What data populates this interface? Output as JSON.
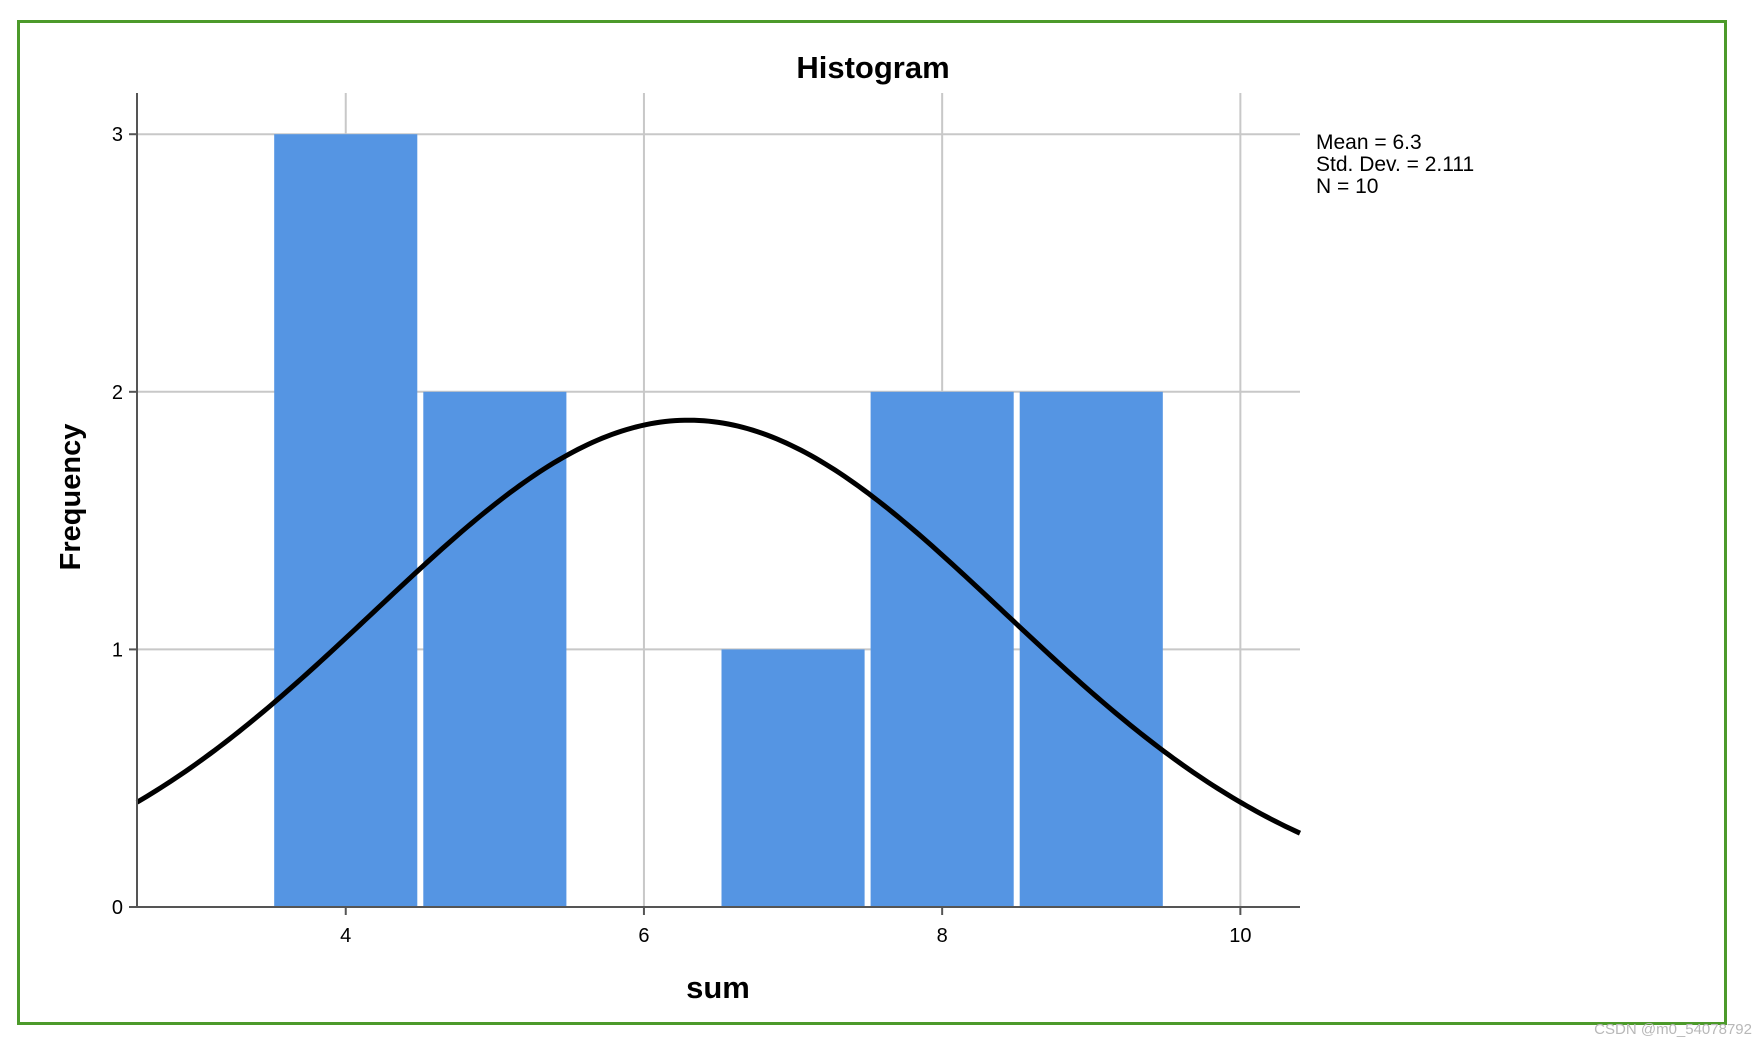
{
  "colors": {
    "bar": "#5595e3",
    "curve": "#000000",
    "grid": "#c8c8c8",
    "frame": "#4c9a2a"
  },
  "stats": {
    "mean": "Mean = 6.3",
    "std": "Std. Dev. = 2.111",
    "n": "N = 10"
  },
  "watermark": "CSDN @m0_54078792",
  "chart_data": {
    "type": "bar",
    "title": "Histogram",
    "xlabel": "sum",
    "ylabel": "Frequency",
    "xlim": [
      2.6,
      10.4
    ],
    "ylim": [
      0,
      3.16
    ],
    "x_ticks": [
      4,
      6,
      8,
      10
    ],
    "y_ticks": [
      0,
      1,
      2,
      3
    ],
    "bins": [
      {
        "start": 3.5,
        "end": 4.5,
        "count": 3
      },
      {
        "start": 4.5,
        "end": 5.5,
        "count": 2
      },
      {
        "start": 6.5,
        "end": 7.5,
        "count": 1
      },
      {
        "start": 7.5,
        "end": 8.5,
        "count": 2
      },
      {
        "start": 8.5,
        "end": 9.5,
        "count": 2
      }
    ],
    "normal_curve": {
      "mean": 6.3,
      "std_dev": 2.111,
      "n": 10,
      "bin_width": 1
    },
    "grid": true
  }
}
